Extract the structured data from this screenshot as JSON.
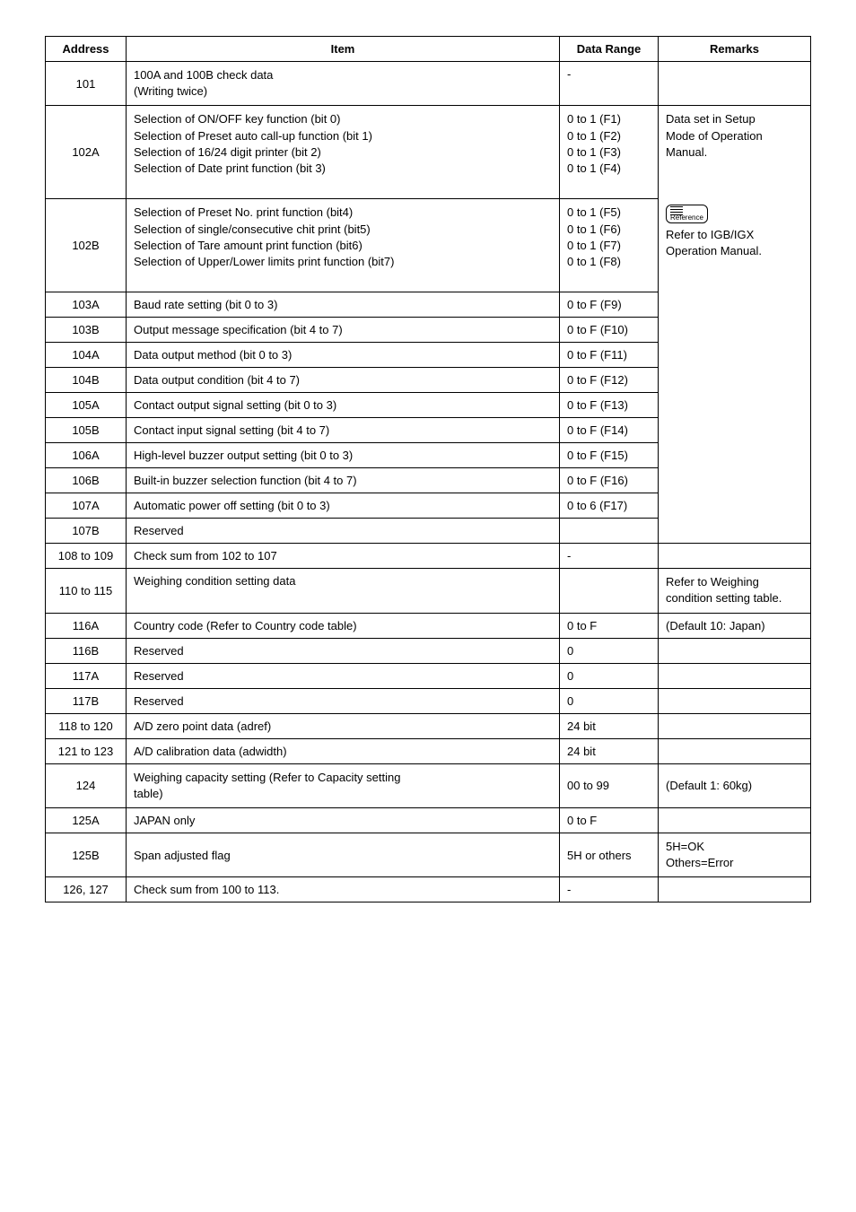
{
  "headers": {
    "address": "Address",
    "item": "Item",
    "range": "Data Range",
    "remarks": "Remarks"
  },
  "rows": {
    "r101": {
      "addr": "101",
      "item1": "100A and 100B check data",
      "item2": "(Writing twice)",
      "range": "-"
    },
    "r102A": {
      "addr": "102A",
      "item1": "Selection of ON/OFF key function (bit 0)",
      "item2": "Selection of Preset auto call-up function (bit 1)",
      "item3": "Selection of 16/24 digit printer (bit 2)",
      "item4": "Selection of Date print function (bit 3)",
      "range1": "0 to 1 (F1)",
      "range2": "0 to 1 (F2)",
      "range3": "0 to 1 (F3)",
      "range4": "0 to 1 (F4)",
      "rem1": "Data set in Setup",
      "rem2": "Mode of Operation",
      "rem3": "Manual."
    },
    "r102B": {
      "addr": "102B",
      "item1": "Selection of Preset No. print function (bit4)",
      "item2": "Selection of single/consecutive chit print (bit5)",
      "item3": "Selection of Tare amount print function (bit6)",
      "item4": "Selection of Upper/Lower limits print function (bit7)",
      "range1": "0 to 1 (F5)",
      "range2": "0 to 1 (F6)",
      "range3": "0 to 1 (F7)",
      "range4": "0 to 1 (F8)",
      "remRef": "Reference",
      "rem1": "Refer to IGB/IGX",
      "rem2": "Operation Manual."
    },
    "r103A": {
      "addr": "103A",
      "item": "Baud rate setting (bit 0 to 3)",
      "range": "0 to F (F9)"
    },
    "r103B": {
      "addr": "103B",
      "item": "Output message specification (bit 4 to 7)",
      "range": "0 to F (F10)"
    },
    "r104A": {
      "addr": "104A",
      "item": "Data output method (bit 0 to 3)",
      "range": "0 to F (F11)"
    },
    "r104B": {
      "addr": "104B",
      "item": "Data output condition (bit 4 to 7)",
      "range": "0 to F (F12)"
    },
    "r105A": {
      "addr": "105A",
      "item": "Contact output signal setting (bit 0 to 3)",
      "range": "0 to F (F13)"
    },
    "r105B": {
      "addr": "105B",
      "item": "Contact input signal setting (bit 4 to 7)",
      "range": "0 to F (F14)"
    },
    "r106A": {
      "addr": "106A",
      "item": "High-level buzzer output setting (bit 0 to 3)",
      "range": "0 to F (F15)"
    },
    "r106B": {
      "addr": "106B",
      "item": "Built-in buzzer selection function (bit 4 to 7)",
      "range": "0 to F (F16)"
    },
    "r107A": {
      "addr": "107A",
      "item": "Automatic power off setting (bit 0 to 3)",
      "range": "0 to 6 (F17)"
    },
    "r107B": {
      "addr": "107B",
      "item": "Reserved",
      "range": ""
    },
    "r108": {
      "addr": "108 to 109",
      "item": "Check sum from 102 to 107",
      "range": "-"
    },
    "r110": {
      "addr": "110 to 115",
      "item": "Weighing condition setting data",
      "range": "",
      "rem1": "Refer to Weighing",
      "rem2": "condition setting table."
    },
    "r116A": {
      "addr": "116A",
      "item": "Country code (Refer to Country code table)",
      "range": "0 to F",
      "rem": "(Default 10: Japan)"
    },
    "r116B": {
      "addr": "116B",
      "item": "Reserved",
      "range": "0"
    },
    "r117A": {
      "addr": "117A",
      "item": "Reserved",
      "range": "0"
    },
    "r117B": {
      "addr": "117B",
      "item": "Reserved",
      "range": "0"
    },
    "r118": {
      "addr": "118 to 120",
      "item": "A/D zero point data (adref)",
      "range": "24 bit"
    },
    "r121": {
      "addr": "121 to 123",
      "item": "A/D calibration data (adwidth)",
      "range": "24 bit"
    },
    "r124": {
      "addr": "124",
      "item1": "Weighing capacity setting (Refer to Capacity setting",
      "item2": "table)",
      "range": "00 to 99",
      "rem": "(Default 1: 60kg)"
    },
    "r125A": {
      "addr": "125A",
      "item": "JAPAN only",
      "range": "0 to F"
    },
    "r125B": {
      "addr": "125B",
      "item": "Span adjusted flag",
      "range": "5H or others",
      "rem1": "5H=OK",
      "rem2": "Others=Error"
    },
    "r126": {
      "addr": "126, 127",
      "item": "Check sum from 100 to 113.",
      "range": "-"
    }
  }
}
